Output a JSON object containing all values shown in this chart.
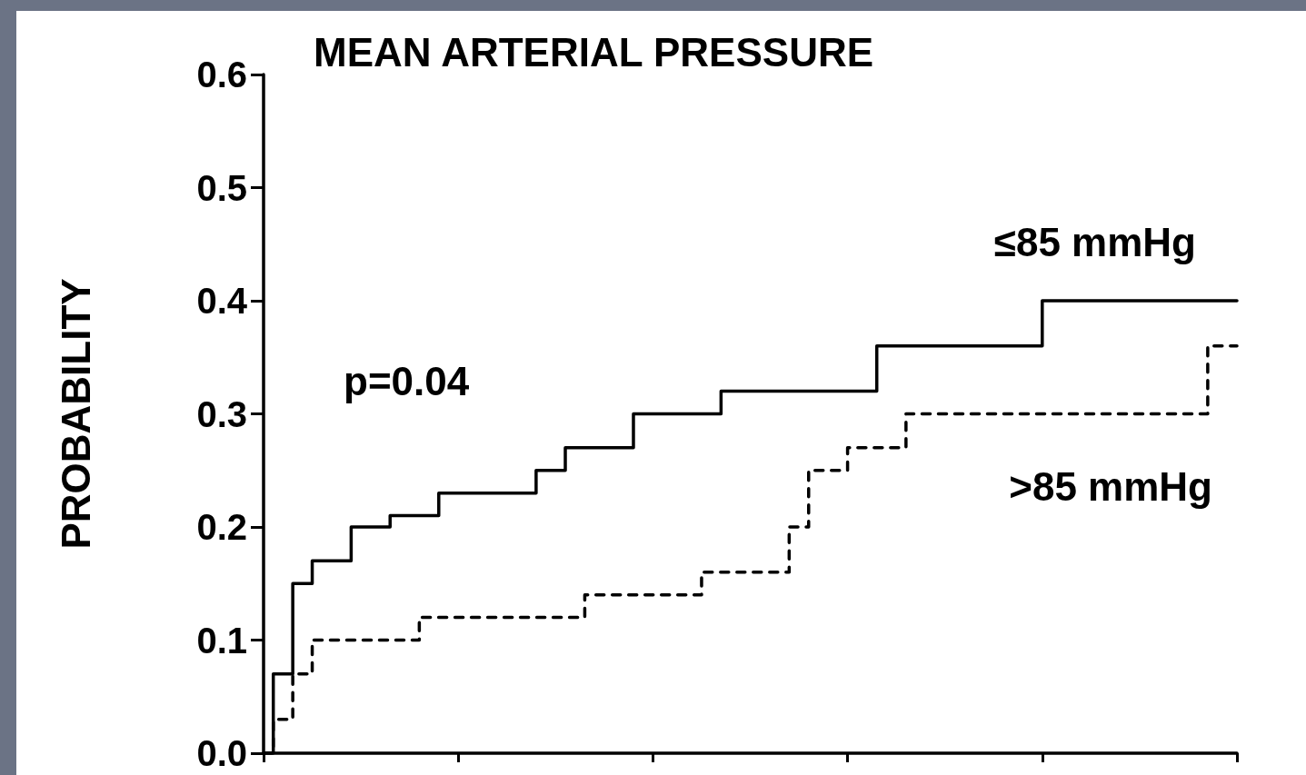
{
  "chart_data": {
    "type": "step",
    "title": "MEAN ARTERIAL PRESSURE",
    "ylabel": "PROBABILITY",
    "annotations": [
      "p=0.04"
    ],
    "categories": [
      null,
      null,
      null,
      null,
      null,
      null,
      null,
      null,
      null,
      null,
      null,
      null,
      null,
      null,
      null,
      null,
      null,
      null,
      null,
      null,
      null,
      null,
      null,
      null,
      null,
      null,
      null,
      null,
      null,
      null,
      null,
      null,
      null,
      null,
      null,
      null,
      null,
      null,
      null,
      null,
      null,
      null,
      null,
      null,
      null,
      null,
      null,
      null,
      null,
      null,
      null,
      null,
      null,
      null,
      null,
      null,
      null,
      null,
      null,
      null,
      null,
      null,
      null,
      null,
      null,
      null,
      null,
      null,
      null,
      null,
      null,
      null,
      null,
      null,
      null,
      null,
      null,
      null,
      null,
      null,
      null,
      null,
      null,
      null,
      null,
      null,
      null,
      null,
      null,
      null,
      null,
      null,
      null,
      null,
      null,
      null,
      null,
      null,
      null,
      null,
      null
    ],
    "ylim": [
      0,
      0.6
    ],
    "yticks": [
      {
        "value": 0,
        "label": "0.0"
      },
      0.1,
      0.2,
      0.3,
      0.4,
      0.5,
      0.6
    ],
    "tick_labels": "y",
    "series": [
      {
        "name": "≤85 mmHg",
        "color": "#000000",
        "line_style": "solid",
        "values": [
          0,
          0.07,
          0.07,
          0.15,
          0.15,
          0.17,
          0.17,
          0.17,
          0.17,
          0.2,
          0.2,
          0.2,
          0.2,
          0.21,
          0.21,
          0.21,
          0.21,
          0.21,
          0.23,
          0.23,
          0.23,
          0.23,
          0.23,
          0.23,
          0.23,
          0.23,
          0.23,
          0.23,
          0.25,
          0.25,
          0.25,
          0.27,
          0.27,
          0.27,
          0.27,
          0.27,
          0.27,
          0.27,
          0.3,
          0.3,
          0.3,
          0.3,
          0.3,
          0.3,
          0.3,
          0.3,
          0.3,
          0.32,
          0.32,
          0.32,
          0.32,
          0.32,
          0.32,
          0.32,
          0.32,
          0.32,
          0.32,
          0.32,
          0.32,
          0.32,
          0.32,
          0.32,
          0.32,
          0.36,
          0.36,
          0.36,
          0.36,
          0.36,
          0.36,
          0.36,
          0.36,
          0.36,
          0.36,
          0.36,
          0.36,
          0.36,
          0.36,
          0.36,
          0.36,
          0.36,
          0.4,
          0.4,
          0.4,
          0.4,
          0.4,
          0.4,
          0.4,
          0.4,
          0.4,
          0.4,
          0.4,
          0.4,
          0.4,
          0.4,
          0.4,
          0.4,
          0.4,
          0.4,
          0.4,
          0.4,
          0.4
        ]
      },
      {
        "name": ">85 mmHg",
        "color": "#000000",
        "line_style": "dashed",
        "values": [
          0,
          0.03,
          0.03,
          0.07,
          0.07,
          0.1,
          0.1,
          0.1,
          0.1,
          0.1,
          0.1,
          0.1,
          0.1,
          0.1,
          0.1,
          0.1,
          0.12,
          0.12,
          0.12,
          0.12,
          0.12,
          0.12,
          0.12,
          0.12,
          0.12,
          0.12,
          0.12,
          0.12,
          0.12,
          0.12,
          0.12,
          0.12,
          0.12,
          0.14,
          0.14,
          0.14,
          0.14,
          0.14,
          0.14,
          0.14,
          0.14,
          0.14,
          0.14,
          0.14,
          0.14,
          0.16,
          0.16,
          0.16,
          0.16,
          0.16,
          0.16,
          0.16,
          0.16,
          0.16,
          0.2,
          0.2,
          0.25,
          0.25,
          0.25,
          0.25,
          0.27,
          0.27,
          0.27,
          0.27,
          0.27,
          0.27,
          0.3,
          0.3,
          0.3,
          0.3,
          0.3,
          0.3,
          0.3,
          0.3,
          0.3,
          0.3,
          0.3,
          0.3,
          0.3,
          0.3,
          0.3,
          0.3,
          0.3,
          0.3,
          0.3,
          0.3,
          0.3,
          0.3,
          0.3,
          0.3,
          0.3,
          0.3,
          0.3,
          0.3,
          0.3,
          0.3,
          0.3,
          0.36,
          0.36,
          0.36,
          0.36
        ]
      }
    ]
  }
}
